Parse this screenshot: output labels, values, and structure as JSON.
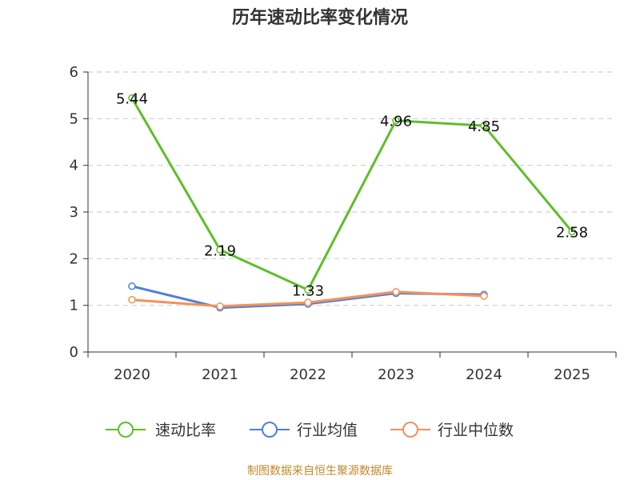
{
  "title": "历年速动比率变化情况",
  "source_note": "制图数据来自恒生聚源数据库",
  "chart_data": {
    "type": "line",
    "title": "历年速动比率变化情况",
    "categories": [
      "2020",
      "2021",
      "2022",
      "2023",
      "2024",
      "2025"
    ],
    "ylim": [
      0,
      6
    ],
    "yticks": [
      0,
      1,
      2,
      3,
      4,
      5,
      6
    ],
    "grid": true,
    "legend_position": "bottom",
    "series": [
      {
        "name": "速动比率",
        "color": "#5cbf2a",
        "values": [
          5.44,
          2.19,
          1.33,
          4.96,
          4.85,
          2.58
        ],
        "labels": [
          "5.44",
          "2.19",
          "1.33",
          "4.96",
          "4.85",
          "2.58"
        ]
      },
      {
        "name": "行业均值",
        "color": "#4f7fdb",
        "values": [
          1.41,
          0.95,
          1.03,
          1.26,
          1.23,
          null
        ]
      },
      {
        "name": "行业中位数",
        "color": "#f4915a",
        "values": [
          1.12,
          0.98,
          1.06,
          1.29,
          1.2,
          null
        ]
      }
    ]
  }
}
